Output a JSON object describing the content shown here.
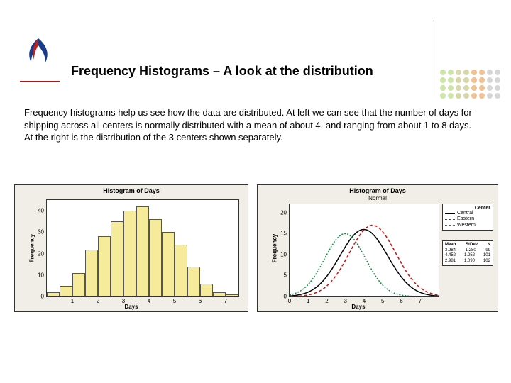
{
  "title": "Frequency Histograms – A look at the distribution",
  "body_text": "Frequency histograms help us see how the data are distributed. At left we can see that the number of days for shipping across all centers is normally distributed with a mean of about 4, and ranging from about 1 to 8 days. At the right is the distribution of the 3 centers shown separately.",
  "logo": {
    "flame_color_top": "#c02020",
    "flame_color_bottom": "#1a3a8a",
    "underline_color": "#a01c1c"
  },
  "dotgrid": {
    "rows": 4,
    "cols": 8,
    "colors": [
      "#cde5a7",
      "#cde5a7",
      "#d6d6a7",
      "#d6d6a7",
      "#f0c090",
      "#f0c090",
      "#d6d6d6",
      "#d6d6d6"
    ]
  },
  "chart_left": {
    "title": "Histogram of Days",
    "ylabel": "Frequency",
    "xlabel": "Days",
    "bar_color": "#f5eb9a",
    "bar_border": "#555555",
    "background": "#f0eee6",
    "plot_bg": "#ffffff",
    "y_ticks": [
      0,
      10,
      20,
      30,
      40
    ],
    "y_max": 45,
    "x_ticks": [
      1,
      2,
      3,
      4,
      5,
      6,
      7
    ],
    "bars": [
      {
        "x": 0,
        "h": 2
      },
      {
        "x": 1,
        "h": 5
      },
      {
        "x": 2,
        "h": 11
      },
      {
        "x": 3,
        "h": 22
      },
      {
        "x": 4,
        "h": 28
      },
      {
        "x": 5,
        "h": 35
      },
      {
        "x": 6,
        "h": 40
      },
      {
        "x": 7,
        "h": 42
      },
      {
        "x": 8,
        "h": 36
      },
      {
        "x": 9,
        "h": 30
      },
      {
        "x": 10,
        "h": 24
      },
      {
        "x": 11,
        "h": 14
      },
      {
        "x": 12,
        "h": 6
      },
      {
        "x": 13,
        "h": 2
      },
      {
        "x": 14,
        "h": 1
      }
    ],
    "n_bars": 15
  },
  "chart_right": {
    "title": "Histogram of Days",
    "subtitle": "Normal",
    "ylabel": "Frequency",
    "xlabel": "Days",
    "background": "#f0eee6",
    "plot_bg": "#ffffff",
    "y_ticks": [
      0,
      5,
      10,
      15,
      20
    ],
    "y_max": 22,
    "x_ticks": [
      0,
      1,
      2,
      3,
      4,
      5,
      6,
      7
    ],
    "x_max": 8,
    "legend_title": "Center",
    "series": [
      {
        "name": "Central",
        "color": "#000000",
        "dash": "solid",
        "mean": 3.984,
        "stdev": 1.28,
        "n": 99
      },
      {
        "name": "Eastern",
        "color": "#d01010",
        "dash": "4,3",
        "mean": 4.452,
        "stdev": 1.252,
        "n": 101
      },
      {
        "name": "Western",
        "color": "#109040",
        "dash": "2,2",
        "mean": 2.981,
        "stdev": 1.09,
        "n": 102
      }
    ],
    "stats_headers": [
      "Mean",
      "StDev",
      "N"
    ]
  }
}
